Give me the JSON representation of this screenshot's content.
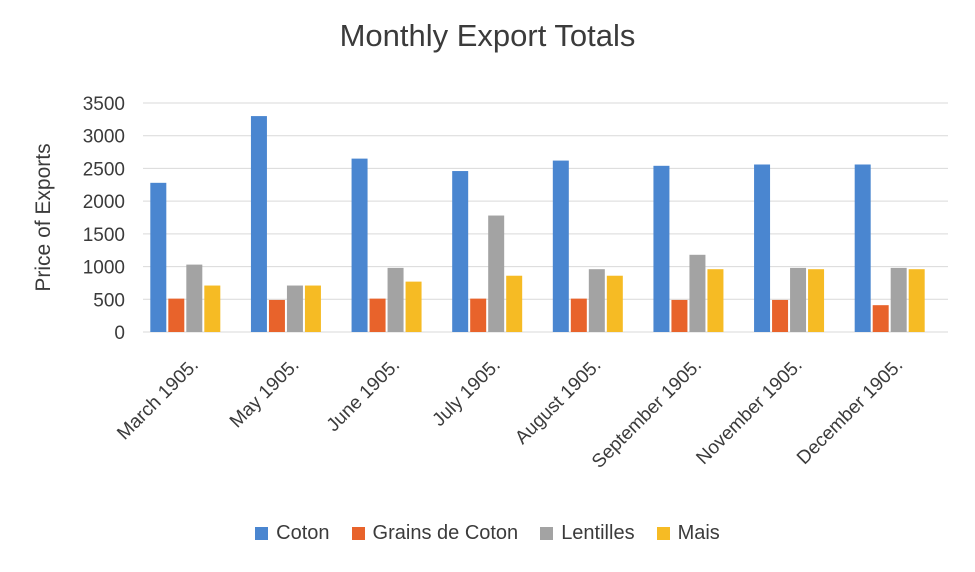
{
  "chart_data": {
    "type": "bar",
    "title": "Monthly Export Totals",
    "xlabel": "",
    "ylabel": "Price of Exports",
    "ylim": [
      0,
      3500
    ],
    "yticks": [
      0,
      500,
      1000,
      1500,
      2000,
      2500,
      3000,
      3500
    ],
    "grid": true,
    "legend_position": "bottom",
    "categories": [
      "March 1905.",
      "May 1905.",
      "June 1905.",
      "July 1905.",
      "August 1905.",
      "September 1905.",
      "November 1905.",
      "December 1905."
    ],
    "series": [
      {
        "name": "Coton",
        "color": "#4a86d0",
        "values": [
          2280,
          3300,
          2650,
          2460,
          2620,
          2540,
          2560,
          2560
        ]
      },
      {
        "name": "Grains de Coton",
        "color": "#e8632b",
        "values": [
          510,
          490,
          510,
          510,
          510,
          490,
          490,
          410
        ]
      },
      {
        "name": "Lentilles",
        "color": "#a3a3a3",
        "values": [
          1030,
          710,
          980,
          1780,
          960,
          1180,
          980,
          980
        ]
      },
      {
        "name": "Mais",
        "color": "#f6bb24",
        "values": [
          710,
          710,
          770,
          860,
          860,
          960,
          960,
          960
        ]
      }
    ]
  }
}
